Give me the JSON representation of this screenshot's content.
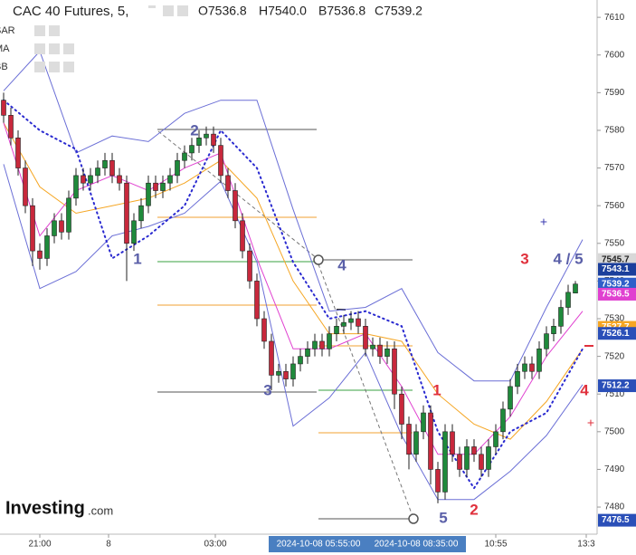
{
  "chart_data": {
    "type": "candlestick",
    "title": "CAC 40 Futures, 5,",
    "ohlc_text": [
      "O7536.8",
      "H7540.0",
      "B7536.8",
      "C7539.2"
    ],
    "indicators": [
      "SAR",
      "MA",
      "BB"
    ],
    "brand": {
      "name": "Investing",
      "suffix": ".com"
    },
    "up_color": "#1f8a3b",
    "down_color": "#c8283c",
    "xlim": [
      -0.5,
      82
    ],
    "xticks": [
      {
        "value": 5,
        "label": "21:00"
      },
      {
        "value": 14.5,
        "label": "8"
      },
      {
        "value": 29.25,
        "label": "03:00"
      },
      {
        "value": 68,
        "label": "10:55"
      },
      {
        "value": 80.5,
        "label": "13:3"
      }
    ],
    "highlight_xticks": [
      {
        "value": 43.5,
        "label": "2024-10-08 05:55:00"
      },
      {
        "value": 57,
        "label": "2024-10-08 08:35:00"
      }
    ],
    "ylim": [
      7472.8,
      7614.6
    ],
    "yticks": [
      7480,
      7490,
      7500,
      7510,
      7520,
      7530,
      7540,
      7550,
      7560,
      7570,
      7580,
      7590,
      7600,
      7610
    ],
    "open": [
      7588,
      7584,
      7578,
      7570,
      7560,
      7548,
      7546,
      7552,
      7556,
      7553,
      7562,
      7568,
      7566,
      7568,
      7570,
      7572,
      7568,
      7566,
      7550,
      7556,
      7560,
      7566,
      7564,
      7566,
      7568,
      7572,
      7574,
      7576,
      7578,
      7579,
      7576,
      7568,
      7564,
      7556,
      7548,
      7540,
      7530,
      7524,
      7515,
      7516,
      7514,
      7518,
      7520,
      7522,
      7524,
      7522,
      7526,
      7528,
      7529,
      7530,
      7528,
      7522,
      7523,
      7520,
      7522,
      7510,
      7502,
      7494,
      7500,
      7505,
      7490,
      7484,
      7500,
      7494,
      7490,
      7496,
      7494,
      7490,
      7496,
      7500,
      7506,
      7512,
      7516,
      7518,
      7516,
      7522,
      7526,
      7528,
      7533,
      7536.8
    ],
    "high": [
      7590,
      7586,
      7580,
      7572,
      7562,
      7550,
      7554,
      7558,
      7558,
      7564,
      7570,
      7570,
      7570,
      7572,
      7574,
      7574,
      7570,
      7568,
      7558,
      7562,
      7568,
      7568,
      7568,
      7570,
      7574,
      7576,
      7578,
      7580,
      7581,
      7581,
      7578,
      7570,
      7566,
      7558,
      7550,
      7542,
      7532,
      7526,
      7518,
      7518,
      7520,
      7522,
      7524,
      7526,
      7526,
      7528,
      7530,
      7531,
      7532,
      7532,
      7530,
      7525,
      7525,
      7524,
      7524,
      7512,
      7504,
      7502,
      7507,
      7507,
      7492,
      7502,
      7502,
      7496,
      7498,
      7498,
      7496,
      7498,
      7502,
      7508,
      7514,
      7518,
      7520,
      7520,
      7524,
      7528,
      7530,
      7535,
      7539,
      7540
    ],
    "low": [
      7582,
      7576,
      7568,
      7558,
      7544,
      7543,
      7544,
      7550,
      7551,
      7551,
      7560,
      7564,
      7564,
      7566,
      7568,
      7566,
      7564,
      7540,
      7548,
      7554,
      7558,
      7562,
      7562,
      7564,
      7566,
      7570,
      7572,
      7574,
      7576,
      7574,
      7566,
      7562,
      7554,
      7546,
      7538,
      7528,
      7522,
      7511,
      7513,
      7512,
      7512,
      7516,
      7518,
      7520,
      7520,
      7520,
      7524,
      7526,
      7527,
      7526,
      7520,
      7520,
      7518,
      7518,
      7506,
      7498,
      7490,
      7492,
      7498,
      7486,
      7481,
      7482,
      7492,
      7488,
      7488,
      7492,
      7488,
      7488,
      7494,
      7498,
      7504,
      7510,
      7514,
      7514,
      7514,
      7520,
      7524,
      7526,
      7531,
      7536.8
    ],
    "close": [
      7584,
      7578,
      7570,
      7560,
      7548,
      7546,
      7552,
      7556,
      7553,
      7562,
      7568,
      7566,
      7568,
      7570,
      7572,
      7568,
      7566,
      7550,
      7556,
      7560,
      7566,
      7564,
      7566,
      7568,
      7572,
      7574,
      7576,
      7578,
      7579,
      7576,
      7568,
      7564,
      7556,
      7548,
      7540,
      7530,
      7524,
      7515,
      7516,
      7514,
      7518,
      7520,
      7522,
      7524,
      7522,
      7526,
      7528,
      7529,
      7530,
      7528,
      7522,
      7523,
      7520,
      7522,
      7510,
      7502,
      7494,
      7500,
      7505,
      7490,
      7484,
      7500,
      7494,
      7490,
      7496,
      7494,
      7490,
      7496,
      7500,
      7506,
      7512,
      7516,
      7518,
      7516,
      7522,
      7526,
      7528,
      7533,
      7537,
      7539.2
    ],
    "series": [
      {
        "color": "#6b6fd6",
        "style": "line",
        "x": [
          0,
          5,
          10,
          15,
          20,
          25,
          30,
          35,
          40,
          45,
          50,
          55,
          60,
          65,
          70,
          75,
          80
        ],
        "values": [
          7590.5,
          7601,
          7574,
          7578.5,
          7577,
          7584.5,
          7588,
          7588,
          7559,
          7532,
          7533,
          7538,
          7521,
          7513.5,
          7513.5,
          7533,
          7551
        ]
      },
      {
        "color": "#6b6fd6",
        "style": "line",
        "x": [
          0,
          5,
          10,
          15,
          20,
          25,
          30,
          35,
          40,
          45,
          50,
          55,
          60,
          65,
          70,
          75,
          80
        ],
        "values": [
          7571,
          7538,
          7542.5,
          7552,
          7554.5,
          7558,
          7566.5,
          7545,
          7501.5,
          7509,
          7521,
          7499,
          7482,
          7482,
          7489.5,
          7499,
          7512.5
        ]
      },
      {
        "color": "#f5a623",
        "style": "line",
        "x": [
          0,
          5,
          10,
          15,
          20,
          25,
          30,
          35,
          40,
          45,
          50,
          55,
          60,
          65,
          70,
          75,
          80
        ],
        "values": [
          7582,
          7565,
          7558,
          7560,
          7562,
          7566,
          7572,
          7562,
          7540,
          7526,
          7526,
          7524,
          7510,
          7502,
          7498,
          7508,
          7522
        ]
      },
      {
        "color": "#e040d0",
        "style": "line",
        "x": [
          0,
          5,
          10,
          15,
          20,
          25,
          30,
          35,
          40,
          45,
          50,
          55,
          60,
          65,
          70,
          75,
          80
        ],
        "values": [
          7582,
          7552,
          7564,
          7568,
          7564,
          7570,
          7574,
          7546,
          7522,
          7522,
          7526,
          7512,
          7494,
          7494,
          7504,
          7520,
          7532
        ]
      },
      {
        "color": "#2a2ad0",
        "style": "dots",
        "x": [
          0,
          5,
          10,
          15,
          20,
          25,
          30,
          35,
          40,
          45,
          50,
          55,
          60,
          65,
          70,
          75,
          80
        ],
        "values": [
          7588,
          7580,
          7575,
          7546,
          7552,
          7560,
          7580,
          7570,
          7545,
          7530,
          7532,
          7528,
          7500,
          7485,
          7500,
          7505,
          7522
        ]
      }
    ],
    "price_labels": [
      {
        "value": 7545.7,
        "color": "#d8d8d8",
        "text_color": "#222"
      },
      {
        "value": 7543.1,
        "color": "#1b3f9c",
        "text_color": "#fff"
      },
      {
        "value": 7539.2,
        "color": "#2f5fc9",
        "text_color": "#fff"
      },
      {
        "value": 7536.5,
        "color": "#e040d0",
        "text_color": "#fff"
      },
      {
        "value": 7527.7,
        "color": "#f5a623",
        "text_color": "#fff"
      },
      {
        "value": 7526.1,
        "color": "#2a4fb8",
        "text_color": "#fff"
      },
      {
        "value": 7512.2,
        "color": "#2a4fb8",
        "text_color": "#fff"
      },
      {
        "value": 7476.5,
        "color": "#2a4fb8",
        "text_color": "#fff"
      }
    ],
    "annotations": [
      {
        "text": "1",
        "color": "#5a5fa8"
      },
      {
        "text": "2",
        "color": "#5a5fa8"
      },
      {
        "text": "3",
        "color": "#5a5fa8"
      },
      {
        "text": "4",
        "color": "#5a5fa8"
      },
      {
        "text": "5",
        "color": "#5a5fa8"
      },
      {
        "text": "1",
        "color": "#e0303c"
      },
      {
        "text": "2",
        "color": "#e0303c"
      },
      {
        "text": "3",
        "color": "#e0303c"
      },
      {
        "text": "4 / 5",
        "color": "#5a5fa8"
      },
      {
        "text": "4",
        "color": "#e0303c"
      }
    ]
  }
}
